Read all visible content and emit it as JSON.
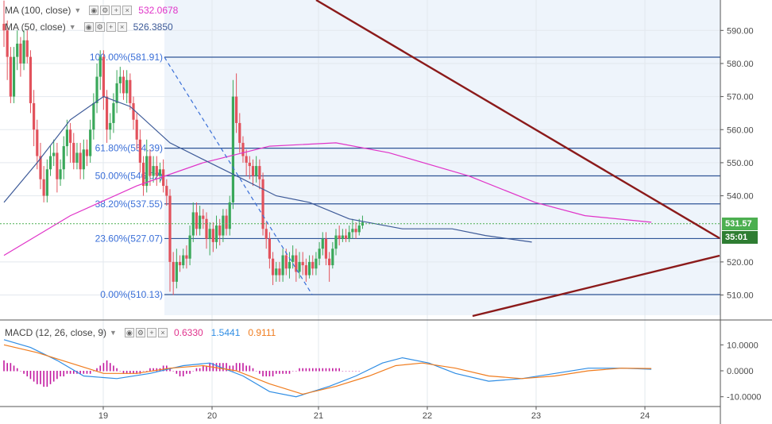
{
  "chart_data": [
    {
      "type": "candlestick",
      "title": "",
      "price_scale": {
        "ticks": [
          590,
          580,
          570,
          560,
          550,
          540,
          520,
          510
        ],
        "ylim": [
          502,
          597
        ]
      },
      "x_ticks": [
        "19",
        "20",
        "21",
        "22",
        "23",
        "24"
      ],
      "indicators": [
        {
          "name": "MA (100, close)",
          "value": "532.0678",
          "color": "#e033c8"
        },
        {
          "name": "MA (50, close)",
          "value": "526.3850",
          "color": "#3d5a98"
        }
      ],
      "current_price": "531.57",
      "countdown": "35:01",
      "fibonacci": [
        {
          "label": "100.00%(581.91)",
          "price": 581.91
        },
        {
          "label": "61.80%(554.39)",
          "price": 554.39
        },
        {
          "label": "50.00%(546.02)",
          "price": 546.02
        },
        {
          "label": "38.20%(537.55)",
          "price": 537.55
        },
        {
          "label": "23.60%(527.07)",
          "price": 527.07
        },
        {
          "label": "0.00%(510.13)",
          "price": 510.13
        }
      ],
      "candles": [
        [
          592,
          590,
          599,
          585
        ],
        [
          590,
          582,
          593,
          575
        ],
        [
          582,
          570,
          585,
          568
        ],
        [
          570,
          582,
          585,
          568
        ],
        [
          582,
          586,
          590,
          578
        ],
        [
          586,
          580,
          588,
          576
        ],
        [
          580,
          587,
          590,
          578
        ],
        [
          587,
          582,
          590,
          580
        ],
        [
          582,
          568,
          584,
          565
        ],
        [
          568,
          560,
          572,
          555
        ],
        [
          560,
          552,
          563,
          548
        ],
        [
          552,
          545,
          556,
          542
        ],
        [
          545,
          540,
          549,
          538
        ],
        [
          540,
          548,
          551,
          538
        ],
        [
          548,
          552,
          555,
          546
        ],
        [
          552,
          553,
          557,
          549
        ],
        [
          553,
          545,
          556,
          541
        ],
        [
          545,
          548,
          551,
          543
        ],
        [
          548,
          555,
          558,
          545
        ],
        [
          555,
          560,
          563,
          552
        ],
        [
          560,
          556,
          562,
          550
        ],
        [
          556,
          550,
          559,
          548
        ],
        [
          550,
          553,
          556,
          548
        ],
        [
          553,
          548,
          556,
          545
        ],
        [
          548,
          554,
          557,
          545
        ],
        [
          554,
          552,
          557,
          549
        ],
        [
          552,
          560,
          563,
          550
        ],
        [
          560,
          568,
          571,
          557
        ],
        [
          568,
          576,
          580,
          565
        ],
        [
          576,
          582,
          584,
          572
        ],
        [
          582,
          570,
          584,
          566
        ],
        [
          570,
          560,
          572,
          556
        ],
        [
          560,
          562,
          565,
          557
        ],
        [
          562,
          568,
          571,
          559
        ],
        [
          568,
          574,
          578,
          565
        ],
        [
          574,
          576,
          579,
          571
        ],
        [
          576,
          571,
          578,
          569
        ],
        [
          571,
          575,
          578,
          568
        ],
        [
          575,
          568,
          577,
          566
        ],
        [
          568,
          563,
          570,
          560
        ],
        [
          563,
          557,
          565,
          554
        ],
        [
          557,
          550,
          560,
          547
        ],
        [
          550,
          543,
          552,
          540
        ],
        [
          543,
          552,
          557,
          541
        ],
        [
          552,
          546,
          554,
          543
        ],
        [
          546,
          549,
          552,
          544
        ],
        [
          549,
          546,
          552,
          543
        ],
        [
          546,
          548,
          550,
          544
        ],
        [
          548,
          543,
          551,
          541
        ],
        [
          543,
          540,
          545,
          537
        ],
        [
          540,
          520,
          542,
          511
        ],
        [
          520,
          514,
          523,
          510
        ],
        [
          514,
          520,
          524,
          512
        ],
        [
          520,
          519,
          522,
          517
        ],
        [
          519,
          522,
          524,
          518
        ],
        [
          522,
          521,
          525,
          518
        ],
        [
          521,
          528,
          531,
          519
        ],
        [
          528,
          535,
          538,
          526
        ],
        [
          535,
          530,
          538,
          528
        ],
        [
          530,
          534,
          537,
          528
        ],
        [
          534,
          533,
          536,
          530
        ],
        [
          533,
          527,
          535,
          524
        ],
        [
          527,
          530,
          532,
          522
        ],
        [
          530,
          526,
          532,
          523
        ],
        [
          526,
          531,
          534,
          524
        ],
        [
          531,
          528,
          533,
          525
        ],
        [
          528,
          534,
          536,
          526
        ],
        [
          534,
          530,
          536,
          528
        ],
        [
          530,
          538,
          540,
          528
        ],
        [
          538,
          570,
          575,
          536
        ],
        [
          570,
          562,
          577,
          559
        ],
        [
          562,
          556,
          565,
          553
        ],
        [
          556,
          552,
          558,
          550
        ],
        [
          552,
          550,
          554,
          546
        ],
        [
          550,
          549,
          552,
          545
        ],
        [
          549,
          546,
          551,
          543
        ],
        [
          546,
          549,
          552,
          544
        ],
        [
          549,
          545,
          551,
          542
        ],
        [
          545,
          530,
          547,
          528
        ],
        [
          530,
          527,
          532,
          524
        ],
        [
          527,
          521,
          529,
          518
        ],
        [
          521,
          516,
          523,
          513
        ],
        [
          516,
          518,
          520,
          514
        ],
        [
          518,
          516,
          520,
          514
        ],
        [
          516,
          522,
          524,
          514
        ],
        [
          522,
          518,
          524,
          516
        ],
        [
          518,
          520,
          523,
          515
        ],
        [
          520,
          522,
          525,
          518
        ],
        [
          522,
          517,
          524,
          514
        ],
        [
          517,
          520,
          523,
          515
        ],
        [
          520,
          519,
          523,
          516
        ],
        [
          519,
          516,
          521,
          514
        ],
        [
          516,
          520,
          522,
          515
        ],
        [
          520,
          518,
          522,
          516
        ],
        [
          518,
          521,
          523,
          516
        ],
        [
          521,
          524,
          526,
          519
        ],
        [
          524,
          527,
          529,
          522
        ],
        [
          527,
          521,
          529,
          519
        ],
        [
          521,
          519,
          523,
          514
        ],
        [
          519,
          524,
          526,
          518
        ],
        [
          524,
          528,
          530,
          522
        ],
        [
          528,
          527,
          531,
          525
        ],
        [
          527,
          528,
          530,
          526
        ],
        [
          528,
          527,
          530,
          526
        ],
        [
          527,
          529,
          531,
          526
        ],
        [
          529,
          530,
          533,
          527
        ],
        [
          530,
          529,
          532,
          527
        ],
        [
          529,
          531,
          533,
          528
        ],
        [
          531,
          532,
          534,
          530
        ]
      ],
      "ma100": [
        [
          0,
          522
        ],
        [
          20,
          534
        ],
        [
          40,
          543
        ],
        [
          60,
          550
        ],
        [
          80,
          555
        ],
        [
          100,
          556
        ],
        [
          116,
          553
        ],
        [
          140,
          546
        ],
        [
          160,
          538
        ],
        [
          175,
          534
        ],
        [
          195,
          532
        ]
      ],
      "ma50": [
        [
          0,
          538
        ],
        [
          10,
          550
        ],
        [
          20,
          563
        ],
        [
          30,
          570
        ],
        [
          38,
          567
        ],
        [
          50,
          556
        ],
        [
          60,
          551
        ],
        [
          72,
          545
        ],
        [
          82,
          540
        ],
        [
          92,
          538
        ],
        [
          104,
          533
        ],
        [
          120,
          530
        ],
        [
          135,
          530
        ],
        [
          145,
          528
        ],
        [
          159,
          526
        ]
      ],
      "macd_panel": {
        "name": "MACD (12, 26, close, 9)",
        "values": [
          "0.6330",
          "1.5441",
          "0.9111"
        ],
        "ticks": [
          "10.0000",
          "0.0000",
          "-10.0000"
        ],
        "ylim": [
          -13,
          17
        ],
        "hist": [
          4,
          3,
          3,
          2,
          1,
          0,
          -1,
          -2,
          -3,
          -4,
          -5,
          -5,
          -6,
          -6,
          -5,
          -4,
          -3,
          -2,
          -2,
          -1,
          -1,
          -1,
          -1,
          -1,
          -1,
          -1,
          -1,
          0,
          1,
          2,
          3,
          4,
          3,
          2,
          1,
          0,
          -1,
          -1,
          -1,
          -1,
          -1,
          -1,
          0,
          0,
          1,
          1,
          1,
          1,
          2,
          2,
          1,
          0,
          -1,
          -2,
          -2,
          -1,
          -1,
          0,
          1,
          1,
          2,
          2,
          3,
          3,
          3,
          3,
          3,
          3,
          2,
          2,
          3,
          3,
          3,
          2,
          2,
          1,
          0,
          -1,
          -2,
          -2,
          -2,
          -2,
          -1,
          -1,
          -1,
          -1,
          -1,
          0,
          0,
          1,
          1,
          1,
          1,
          1,
          1,
          1,
          1,
          1,
          1,
          1,
          1,
          1,
          0,
          0,
          0,
          0,
          0,
          0
        ],
        "macd": [
          [
            0,
            12
          ],
          [
            8,
            9
          ],
          [
            16,
            4
          ],
          [
            24,
            -2
          ],
          [
            34,
            -3
          ],
          [
            44,
            -1
          ],
          [
            54,
            2
          ],
          [
            62,
            3
          ],
          [
            72,
            -2
          ],
          [
            80,
            -8
          ],
          [
            88,
            -10
          ],
          [
            98,
            -6
          ],
          [
            106,
            -2
          ],
          [
            114,
            3
          ],
          [
            120,
            5
          ],
          [
            128,
            3
          ],
          [
            136,
            -1
          ],
          [
            146,
            -4
          ],
          [
            156,
            -3
          ],
          [
            166,
            -1
          ],
          [
            176,
            1
          ],
          [
            186,
            1
          ],
          [
            195,
            0.6
          ]
        ],
        "signal": [
          [
            0,
            10
          ],
          [
            10,
            7
          ],
          [
            20,
            3
          ],
          [
            30,
            -1
          ],
          [
            40,
            -1
          ],
          [
            50,
            1
          ],
          [
            60,
            2
          ],
          [
            70,
            0
          ],
          [
            80,
            -5
          ],
          [
            90,
            -9
          ],
          [
            100,
            -6
          ],
          [
            110,
            -2
          ],
          [
            118,
            2
          ],
          [
            126,
            3
          ],
          [
            136,
            1
          ],
          [
            146,
            -2
          ],
          [
            156,
            -3
          ],
          [
            166,
            -2
          ],
          [
            176,
            0
          ],
          [
            186,
            1
          ],
          [
            195,
            0.9
          ]
        ]
      }
    }
  ]
}
